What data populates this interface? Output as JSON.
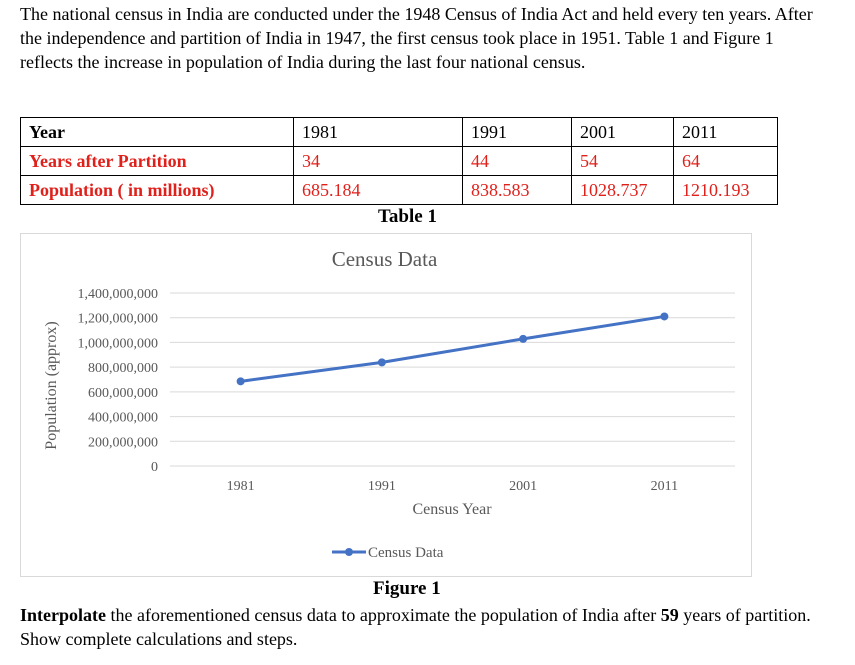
{
  "intro_text": "The national census in India are conducted under the 1948 Census of India Act and held every ten years. After the independence and partition of India in 1947, the first census took place in 1951. Table 1 and Figure 1 reflects the increase in population of India during the last four national census.",
  "table": {
    "rows": [
      {
        "label": "Year",
        "cells": [
          "1981",
          "1991",
          "2001",
          "2011"
        ]
      },
      {
        "label": "Years after Partition",
        "cells": [
          "34",
          "44",
          "54",
          "64"
        ]
      },
      {
        "label": "Population ( in millions)",
        "cells": [
          "685.184",
          "838.583",
          "1028.737",
          "1210.193"
        ]
      }
    ],
    "caption": "Table 1"
  },
  "chart_data": {
    "type": "line",
    "title": "Census Data",
    "xlabel": "Census Year",
    "ylabel": "Population (approx)",
    "categories": [
      "1981",
      "1991",
      "2001",
      "2011"
    ],
    "series": [
      {
        "name": "Census Data",
        "values": [
          685184000,
          838583000,
          1028737000,
          1210193000
        ]
      }
    ],
    "y_ticks": [
      "0",
      "200,000,000",
      "400,000,000",
      "600,000,000",
      "800,000,000",
      "1,000,000,000",
      "1,200,000,000",
      "1,400,000,000"
    ],
    "ylim": [
      0,
      1400000000
    ],
    "grid": true,
    "legend": "bottom",
    "line_color": "#4472c4"
  },
  "figure_caption": "Figure 1",
  "question": {
    "bold_word": "Interpolate",
    "text1": " the aforementioned census data to approximate the population of India after ",
    "years": "59",
    "text2": " years of partition. Show complete calculations and steps."
  }
}
